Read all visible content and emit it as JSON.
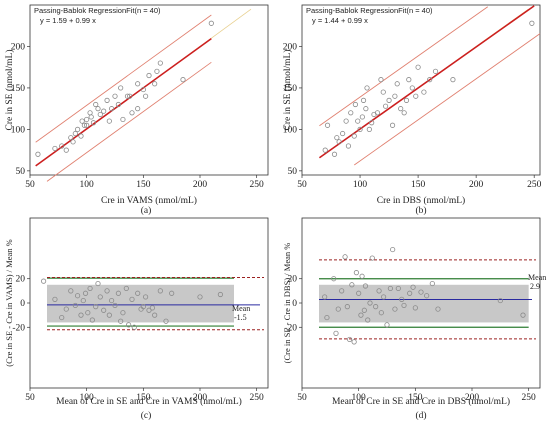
{
  "colors": {
    "fit_line": "#cc1f1f",
    "ci_line": "#e08070",
    "identity_line": "#e8d090",
    "points": "#8a8a8a",
    "mean_line": "#2a2aa0",
    "loa_line": "#9b2020",
    "agreement_line": "#2e7d32",
    "band": "#c8c8c8"
  },
  "chart_data": [
    {
      "type": "scatter",
      "panel_label": "(a)",
      "title": "Passing-Bablok RegressionFit(n = 40)",
      "equation": "y = 1.59  +  0.99  x",
      "xlabel": "Cre in VAMS  (nmol/mL)",
      "ylabel": "Cre in SE (nmol/mL)",
      "xlim": [
        50,
        260
      ],
      "ylim": [
        45,
        250
      ],
      "xticks": [
        50,
        100,
        150,
        200,
        250
      ],
      "yticks": [
        50,
        100,
        150,
        200
      ],
      "fit": {
        "intercept": 1.59,
        "slope": 0.99,
        "x_range": [
          55,
          210
        ]
      },
      "ci_upper": {
        "intercept": 30,
        "slope": 0.99,
        "x_range": [
          55,
          210
        ]
      },
      "ci_lower": {
        "intercept": -27,
        "slope": 0.99,
        "x_range": [
          65,
          210
        ]
      },
      "x": [
        57,
        72,
        78,
        82,
        86,
        88,
        90,
        92,
        95,
        96,
        98,
        100,
        100,
        103,
        104,
        106,
        108,
        110,
        112,
        115,
        118,
        120,
        122,
        125,
        128,
        130,
        132,
        136,
        138,
        140,
        145,
        145,
        150,
        152,
        155,
        160,
        162,
        165,
        185,
        210
      ],
      "y": [
        70,
        77,
        80,
        75,
        90,
        85,
        95,
        100,
        92,
        110,
        105,
        105,
        112,
        120,
        115,
        108,
        130,
        125,
        118,
        122,
        135,
        110,
        125,
        140,
        130,
        150,
        112,
        140,
        140,
        120,
        155,
        125,
        148,
        140,
        165,
        155,
        170,
        180,
        160,
        228
      ]
    },
    {
      "type": "scatter",
      "panel_label": "(b)",
      "title": "Passing-Bablok RegressionFit(n = 40)",
      "equation": "y = 1.44  +  0.99  x",
      "xlabel": "Cre in  DBS  (nmol/mL)",
      "ylabel": "Cre in SE (nmol/mL)",
      "xlim": [
        50,
        255
      ],
      "ylim": [
        45,
        250
      ],
      "xticks": [
        50,
        100,
        150,
        200,
        250
      ],
      "yticks": [
        50,
        100,
        150,
        200
      ],
      "fit": {
        "intercept": 1.44,
        "slope": 0.99,
        "x_range": [
          65,
          250
        ]
      },
      "ci_upper": {
        "intercept": 40,
        "slope": 0.99,
        "x_range": [
          65,
          210
        ]
      },
      "ci_lower": {
        "intercept": -37,
        "slope": 0.99,
        "x_range": [
          95,
          255
        ]
      },
      "x": [
        70,
        72,
        78,
        80,
        82,
        85,
        88,
        90,
        92,
        95,
        96,
        98,
        100,
        102,
        103,
        105,
        106,
        108,
        110,
        112,
        115,
        118,
        120,
        122,
        125,
        128,
        130,
        132,
        135,
        138,
        140,
        142,
        145,
        148,
        150,
        155,
        160,
        165,
        180,
        248
      ],
      "y": [
        75,
        105,
        70,
        90,
        85,
        95,
        110,
        80,
        120,
        92,
        130,
        110,
        100,
        115,
        135,
        125,
        150,
        100,
        108,
        118,
        120,
        160,
        145,
        128,
        135,
        105,
        140,
        155,
        125,
        120,
        135,
        160,
        150,
        140,
        175,
        145,
        160,
        170,
        160,
        228
      ]
    },
    {
      "type": "scatter",
      "panel_label": "(c)",
      "xlabel": "Mean of Cre in SE and Cre in VAMS (nmol/mL)",
      "ylabel": "(Cre in SE - Cre in VAMS) / Mean %",
      "xlim": [
        50,
        260
      ],
      "ylim": [
        -70,
        70
      ],
      "xticks": [
        50,
        100,
        150,
        200,
        250
      ],
      "yticks": [
        -20,
        0,
        20
      ],
      "mean_label": "Mean",
      "mean_value": "-1.5",
      "mean": -1.5,
      "band": [
        -16,
        15
      ],
      "agreement_lines": [
        20.5,
        -19
      ],
      "loa_lines": [
        21,
        -22
      ],
      "line_x_range": [
        65,
        230
      ],
      "x": [
        62,
        72,
        78,
        82,
        86,
        90,
        92,
        95,
        97,
        99,
        101,
        103,
        105,
        108,
        110,
        112,
        115,
        118,
        120,
        122,
        125,
        128,
        130,
        132,
        135,
        137,
        140,
        142,
        145,
        148,
        150,
        152,
        155,
        158,
        160,
        165,
        170,
        175,
        200,
        218
      ],
      "y": [
        18,
        3,
        -12,
        -5,
        10,
        -2,
        6,
        -10,
        2,
        8,
        -8,
        12,
        -14,
        -3,
        16,
        5,
        -6,
        10,
        -10,
        2,
        -2,
        8,
        -15,
        -8,
        12,
        -18,
        3,
        -20,
        8,
        -5,
        -3,
        5,
        -6,
        -4,
        -10,
        10,
        -15,
        8,
        5,
        7
      ]
    },
    {
      "type": "scatter",
      "panel_label": "(d)",
      "xlabel": "Mean of Cre in SE and Cre in DBS (nmol/mL)",
      "ylabel": "(Cre in SE - Cre in DBS) / Mean %",
      "xlim": [
        50,
        260
      ],
      "ylim": [
        -70,
        70
      ],
      "xticks": [
        50,
        100,
        150,
        200,
        250
      ],
      "yticks": [
        -20,
        0,
        20
      ],
      "mean_label": "Mean",
      "mean_value": "2.9",
      "mean": 2.9,
      "band": [
        -16,
        15
      ],
      "agreement_lines": [
        20,
        -20
      ],
      "loa_lines": [
        35.5,
        -29.5
      ],
      "line_x_range": [
        65,
        250
      ],
      "x": [
        70,
        72,
        78,
        80,
        82,
        85,
        88,
        90,
        92,
        94,
        96,
        98,
        100,
        102,
        103,
        105,
        106,
        108,
        110,
        112,
        115,
        118,
        120,
        122,
        125,
        128,
        130,
        132,
        135,
        138,
        140,
        145,
        148,
        150,
        155,
        160,
        165,
        170,
        225,
        245
      ],
      "y": [
        5,
        -12,
        20,
        -25,
        -5,
        10,
        38,
        -3,
        -30,
        15,
        -32,
        25,
        8,
        -10,
        22,
        -6,
        14,
        -14,
        0,
        37,
        -3,
        10,
        -8,
        5,
        -18,
        12,
        44,
        -5,
        12,
        3,
        -2,
        8,
        13,
        -4,
        9,
        6,
        16,
        -5,
        2,
        -10
      ]
    }
  ]
}
